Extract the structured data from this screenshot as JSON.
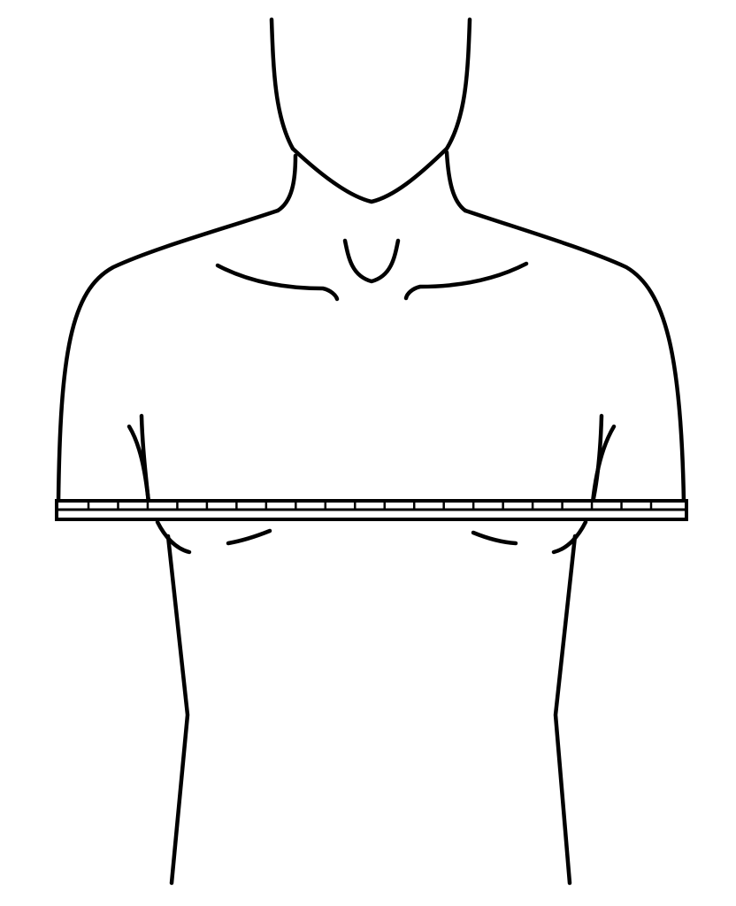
{
  "figure": {
    "subject": "upper-torso-outline",
    "measurement": "chest-circumference",
    "colors": {
      "line": "#000000",
      "background": "#ffffff",
      "tape_fill": "#ffffff"
    },
    "tape": {
      "tick_count": 20,
      "labels": []
    }
  }
}
